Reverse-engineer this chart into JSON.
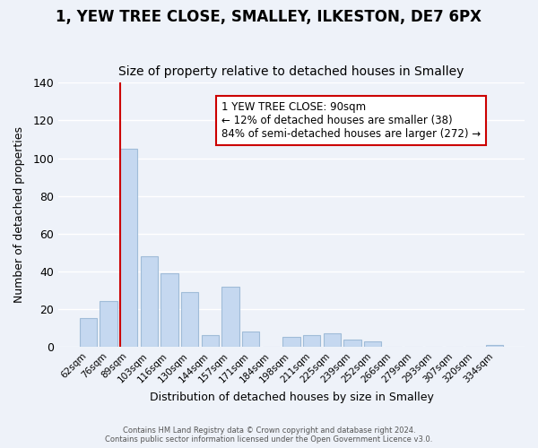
{
  "title": "1, YEW TREE CLOSE, SMALLEY, ILKESTON, DE7 6PX",
  "subtitle": "Size of property relative to detached houses in Smalley",
  "xlabel": "Distribution of detached houses by size in Smalley",
  "ylabel": "Number of detached properties",
  "bar_labels": [
    "62sqm",
    "76sqm",
    "89sqm",
    "103sqm",
    "116sqm",
    "130sqm",
    "144sqm",
    "157sqm",
    "171sqm",
    "184sqm",
    "198sqm",
    "211sqm",
    "225sqm",
    "239sqm",
    "252sqm",
    "266sqm",
    "279sqm",
    "293sqm",
    "307sqm",
    "320sqm",
    "334sqm"
  ],
  "bar_values": [
    15,
    24,
    105,
    48,
    39,
    29,
    6,
    32,
    8,
    0,
    5,
    6,
    7,
    4,
    3,
    0,
    0,
    0,
    0,
    0,
    1
  ],
  "bar_color": "#c5d8f0",
  "bar_edge_color": "#a0bcd8",
  "vline_x_index": 2,
  "vline_color": "#cc0000",
  "ylim": [
    0,
    140
  ],
  "yticks": [
    0,
    20,
    40,
    60,
    80,
    100,
    120,
    140
  ],
  "annotation_title": "1 YEW TREE CLOSE: 90sqm",
  "annotation_line1": "← 12% of detached houses are smaller (38)",
  "annotation_line2": "84% of semi-detached houses are larger (272) →",
  "annotation_box_color": "#ffffff",
  "annotation_box_edge": "#cc0000",
  "footer_line1": "Contains HM Land Registry data © Crown copyright and database right 2024.",
  "footer_line2": "Contains public sector information licensed under the Open Government Licence v3.0.",
  "background_color": "#eef2f9",
  "plot_background": "#eef2f9",
  "grid_color": "#ffffff",
  "title_fontsize": 12,
  "subtitle_fontsize": 10
}
